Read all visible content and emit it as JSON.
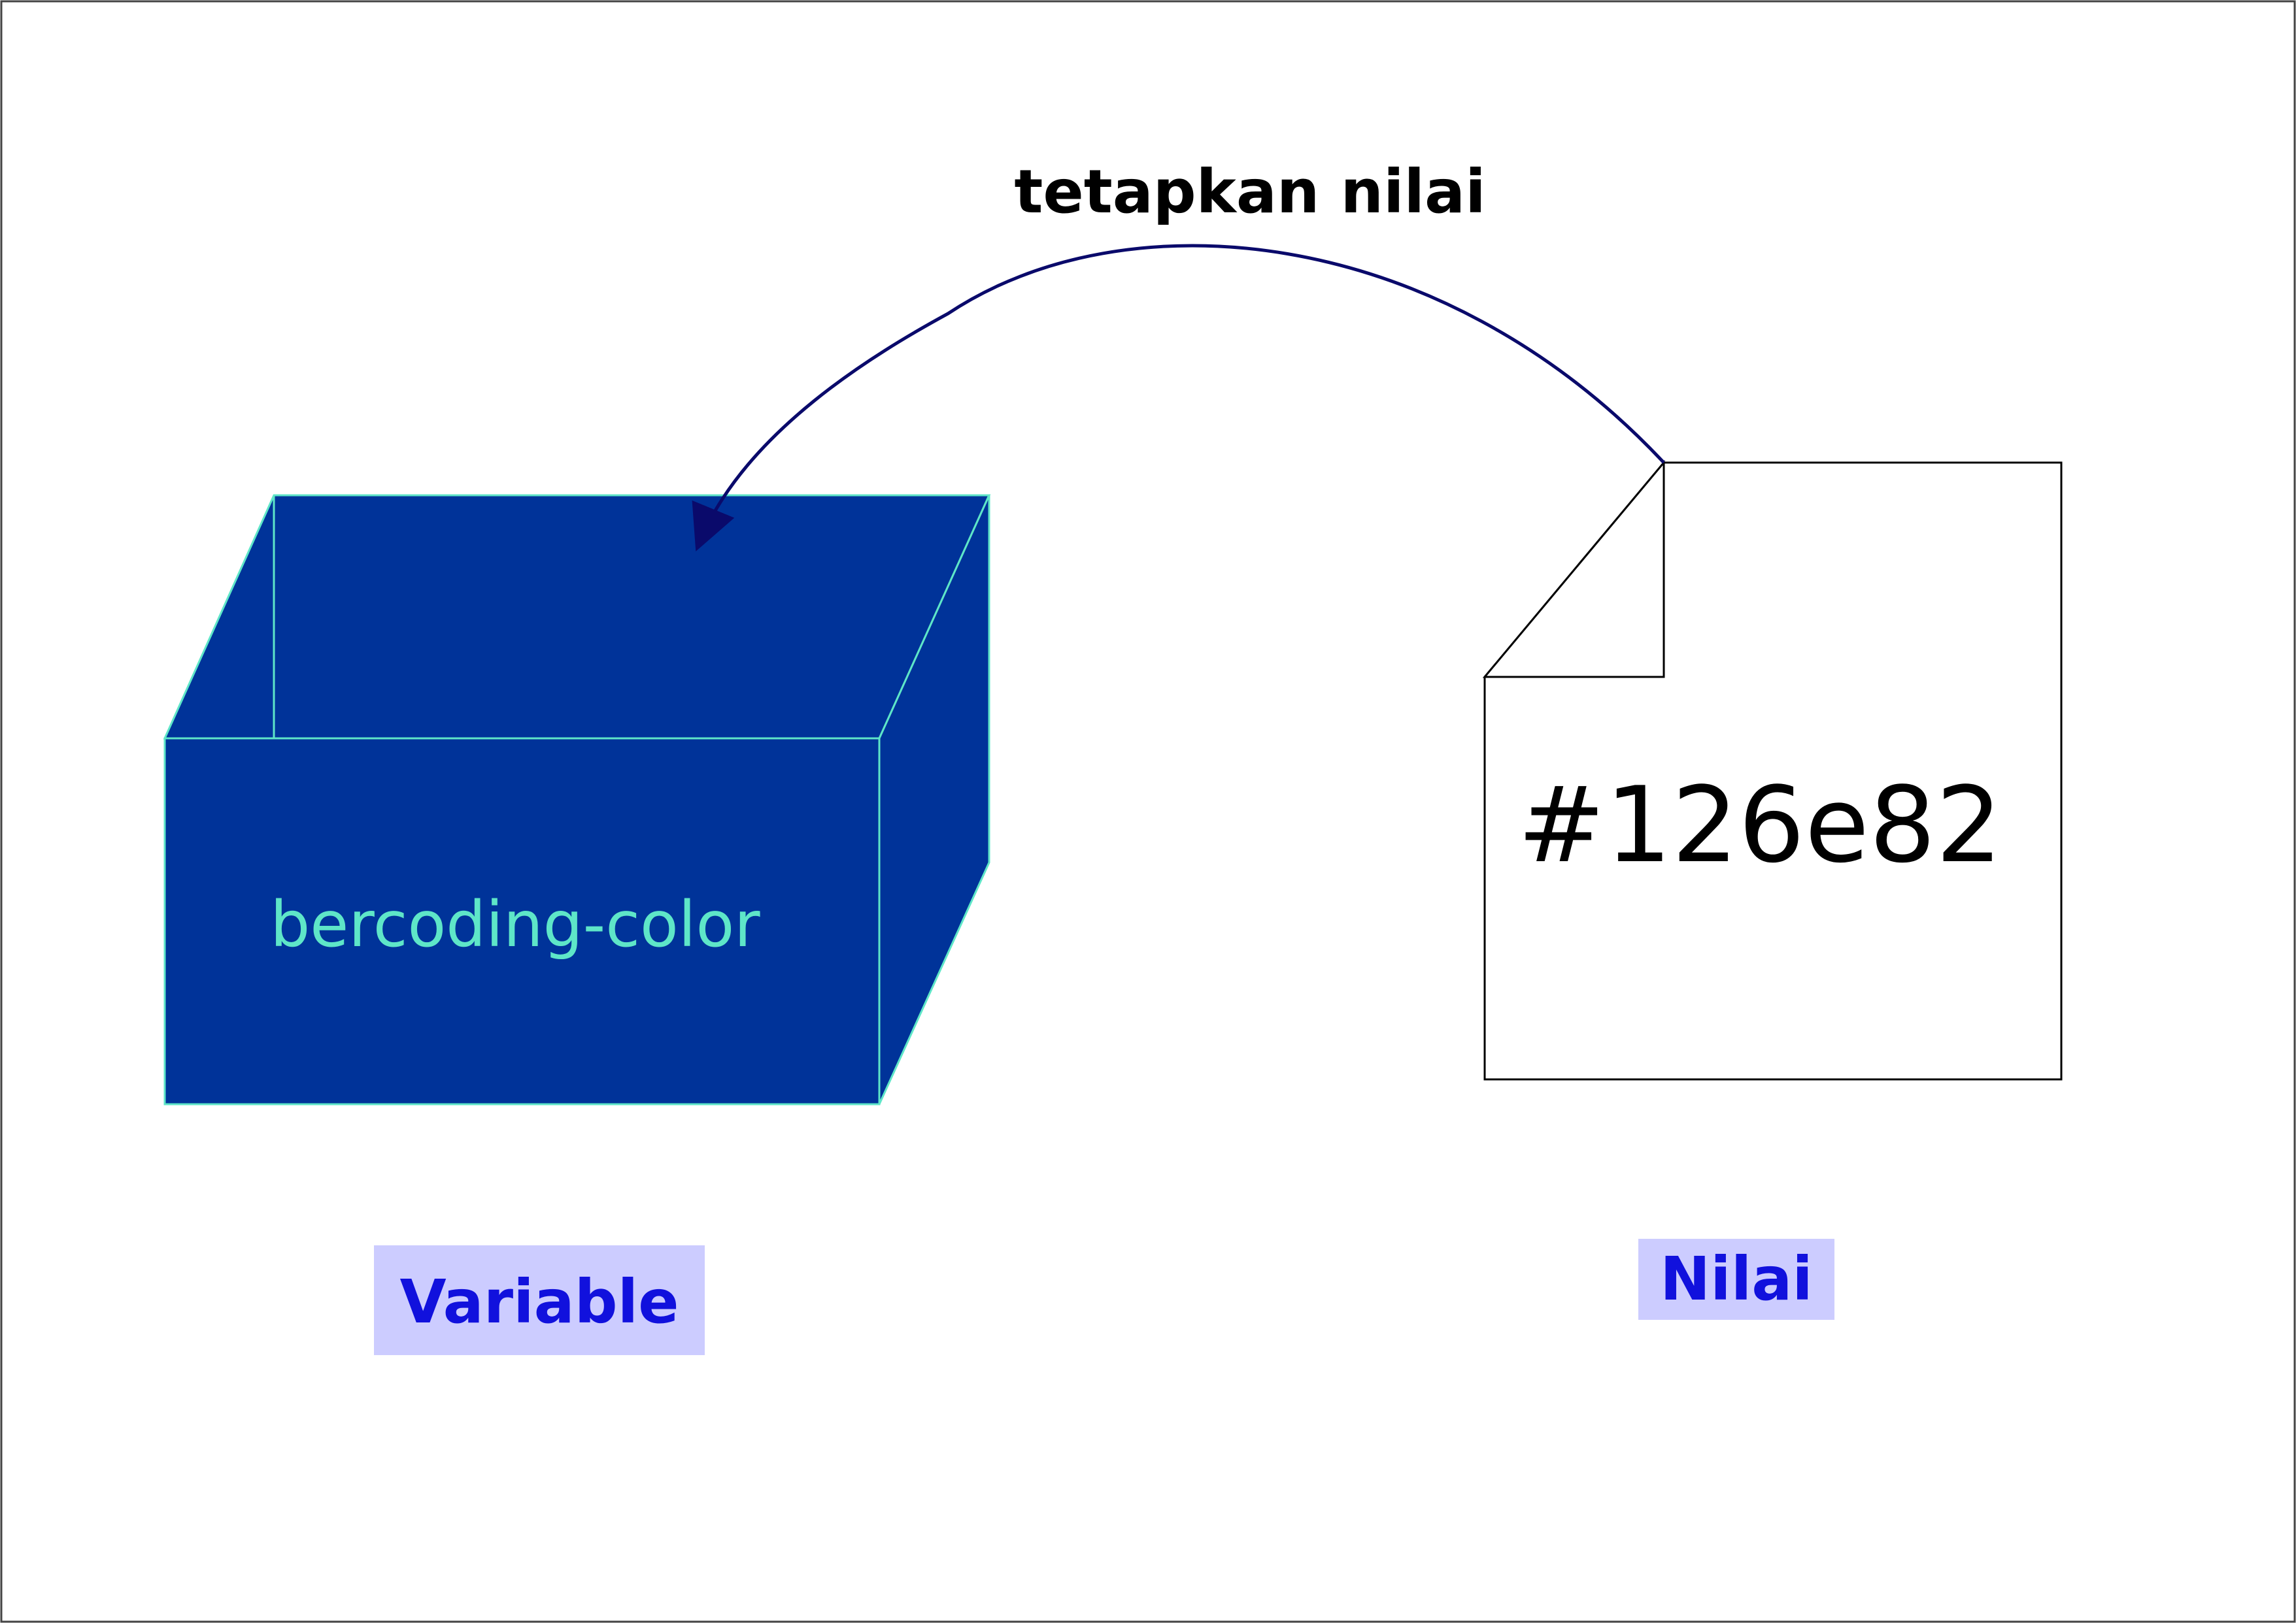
{
  "arrow": {
    "label": "tetapkan nilai",
    "color": "#0a0a6b"
  },
  "variable_box": {
    "label": "bercoding-color",
    "fill_color": "#003399",
    "edge_color": "#5ee6c8",
    "label_color": "#5ee6c8"
  },
  "value_document": {
    "value": "#126e82",
    "fill_color": "#ffffff",
    "stroke_color": "#000000"
  },
  "tags": {
    "variable": "Variable",
    "value": "Nilai",
    "background_color": "#ccccff",
    "text_color": "#1111dd"
  }
}
